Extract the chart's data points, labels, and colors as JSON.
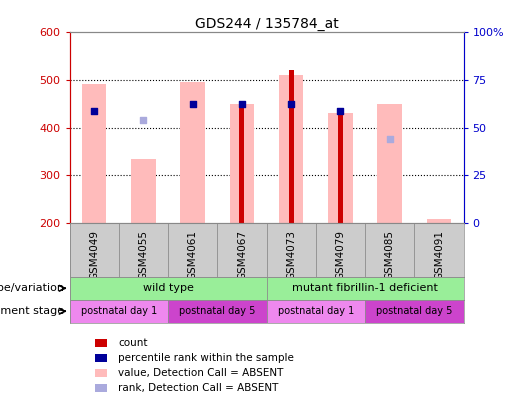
{
  "title": "GDS244 / 135784_at",
  "samples": [
    "GSM4049",
    "GSM4055",
    "GSM4061",
    "GSM4067",
    "GSM4073",
    "GSM4079",
    "GSM4085",
    "GSM4091"
  ],
  "ylim": [
    200,
    600
  ],
  "yticks_left": [
    200,
    300,
    400,
    500,
    600
  ],
  "yticks_right": [
    0,
    25,
    50,
    75,
    100
  ],
  "ylabel_left_color": "#cc0000",
  "ylabel_right_color": "#0000cc",
  "bar_bottom": 200,
  "pink_bar_heights": [
    490,
    335,
    495,
    450,
    510,
    430,
    450,
    210
  ],
  "red_bar_heights": [
    0,
    0,
    0,
    455,
    520,
    430,
    0,
    0
  ],
  "blue_dot_y": [
    435,
    null,
    450,
    450,
    450,
    435,
    null,
    null
  ],
  "blue_dot_size": 18,
  "light_blue_dot_y": [
    null,
    415,
    null,
    null,
    null,
    null,
    375,
    null
  ],
  "light_blue_dot_size": 18,
  "genotype_groups": [
    {
      "label": "wild type",
      "start": 0,
      "end": 4,
      "color": "#99ee99"
    },
    {
      "label": "mutant fibrillin-1 deficient",
      "start": 4,
      "end": 8,
      "color": "#99ee99"
    }
  ],
  "dev_stage_groups": [
    {
      "label": "postnatal day 1",
      "start": 0,
      "end": 2,
      "color": "#ee88ee"
    },
    {
      "label": "postnatal day 5",
      "start": 2,
      "end": 4,
      "color": "#cc44cc"
    },
    {
      "label": "postnatal day 1",
      "start": 4,
      "end": 6,
      "color": "#ee88ee"
    },
    {
      "label": "postnatal day 5",
      "start": 6,
      "end": 8,
      "color": "#cc44cc"
    }
  ],
  "legend_items": [
    {
      "label": "count",
      "color": "#cc0000"
    },
    {
      "label": "percentile rank within the sample",
      "color": "#000099"
    },
    {
      "label": "value, Detection Call = ABSENT",
      "color": "#ffbbbb"
    },
    {
      "label": "rank, Detection Call = ABSENT",
      "color": "#aaaadd"
    }
  ],
  "left_label_text": "genotype/variation",
  "dev_label_text": "development stage",
  "background_color": "#ffffff",
  "plot_bg_color": "#ffffff",
  "sample_bg_color": "#cccccc",
  "pink_bar_width": 0.5,
  "red_bar_width": 0.1
}
